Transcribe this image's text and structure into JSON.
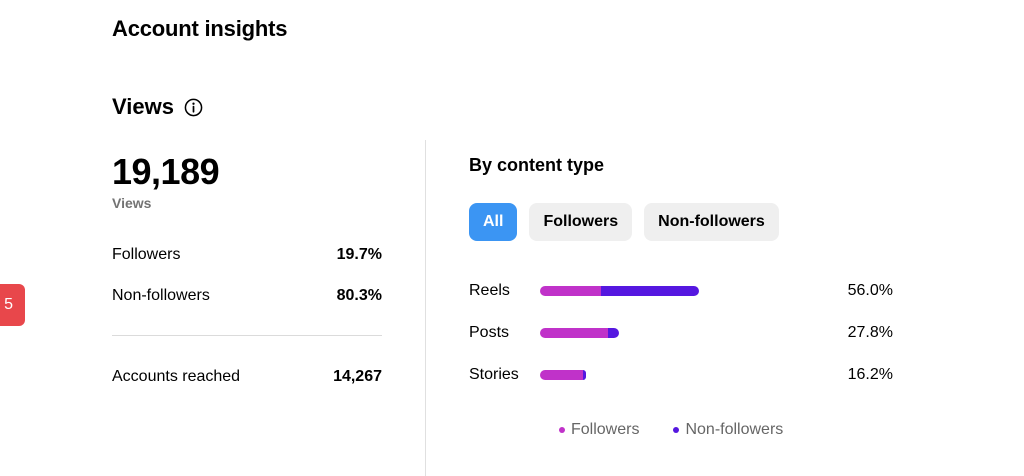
{
  "page": {
    "title": "Account insights"
  },
  "views": {
    "title": "Views",
    "total": "19,189",
    "total_label": "Views",
    "followers_label": "Followers",
    "followers_pct": "19.7%",
    "nonfollowers_label": "Non-followers",
    "nonfollowers_pct": "80.3%",
    "reached_label": "Accounts reached",
    "reached_value": "14,267"
  },
  "side_badge": "5",
  "content_type": {
    "title": "By content type",
    "filters": [
      "All",
      "Followers",
      "Non-followers"
    ],
    "active_filter": "All",
    "rows": [
      {
        "label": "Reels",
        "pct": "56.0%",
        "share": 0.56,
        "followers_fraction": 0.38
      },
      {
        "label": "Posts",
        "pct": "27.8%",
        "share": 0.278,
        "followers_fraction": 0.86
      },
      {
        "label": "Stories",
        "pct": "16.2%",
        "share": 0.162,
        "followers_fraction": 0.93
      }
    ],
    "legend": [
      {
        "label": "Followers",
        "color": "#c032c9"
      },
      {
        "label": "Non-followers",
        "color": "#5517e0"
      }
    ]
  }
}
